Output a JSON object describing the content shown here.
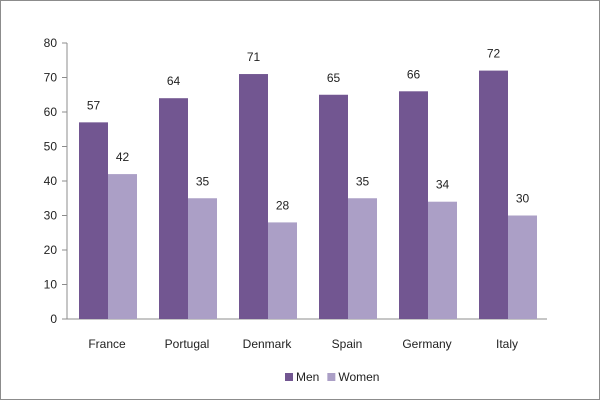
{
  "chart_data": {
    "type": "bar",
    "title": "",
    "xlabel": "",
    "ylabel": "",
    "categories": [
      "France",
      "Portugal",
      "Denmark",
      "Spain",
      "Germany",
      "Italy"
    ],
    "series": [
      {
        "name": "Men",
        "values": [
          57,
          64,
          71,
          65,
          66,
          72
        ],
        "color": "#725691"
      },
      {
        "name": "Women",
        "values": [
          42,
          35,
          28,
          35,
          34,
          30
        ],
        "color": "#ab9fc6"
      }
    ],
    "ylim": [
      0,
      80
    ],
    "yticks": [
      "0",
      "10",
      "20",
      "30",
      "40",
      "50",
      "60",
      "70",
      "80"
    ],
    "grid": false,
    "legend": "bottom",
    "axis_color": "#8c8c8c"
  }
}
